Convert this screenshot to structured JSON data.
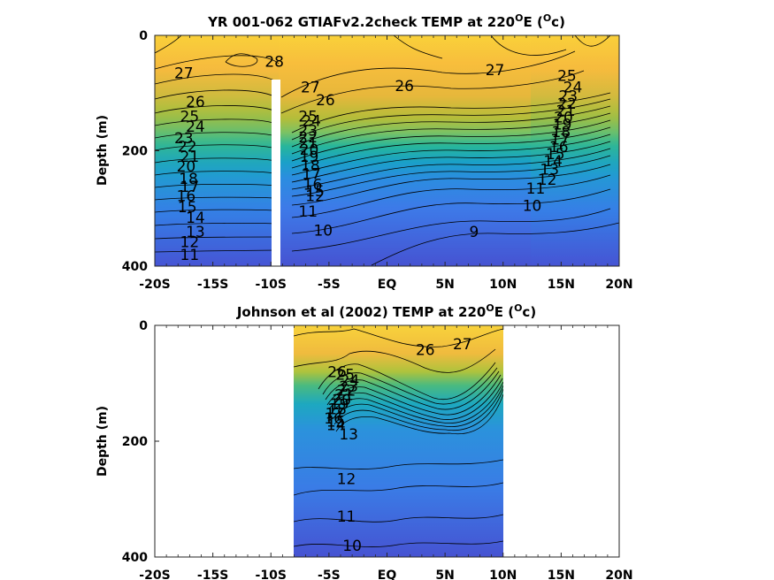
{
  "chart_data": [
    {
      "type": "contour",
      "title": "YR 001-062 GTIAFv2.2check TEMP at 220",
      "title_sup": "O",
      "title_tail": "E (",
      "title_unit_sup": "O",
      "title_unit": "c)",
      "ylabel": "Depth (m)",
      "xlim": [
        -20,
        20
      ],
      "ylim": [
        0,
        400
      ],
      "y_reversed": true,
      "x_ticks": [
        -20,
        -15,
        -10,
        -5,
        0,
        5,
        10,
        15,
        20
      ],
      "x_tick_labels": [
        "-20S",
        "-15S",
        "-10S",
        "-5S",
        "EQ",
        "5N",
        "10N",
        "15N",
        "20N"
      ],
      "y_ticks": [
        0,
        200,
        400
      ],
      "y_tick_labels": [
        "0",
        "200",
        "400"
      ],
      "data_extent_x": [
        -20,
        20
      ],
      "missing_band_x": [
        -10.1,
        -9.7
      ],
      "missing_band_top_depth": 78,
      "colormap": "parula",
      "color_range": [
        8,
        29
      ],
      "contour_interval": 1,
      "contour_labels": [
        {
          "text": "28",
          "x": -9.7,
          "depth": 45
        },
        {
          "text": "27",
          "x": -17.5,
          "depth": 65
        },
        {
          "text": "26",
          "x": -16.5,
          "depth": 115
        },
        {
          "text": "25",
          "x": -17,
          "depth": 140
        },
        {
          "text": "24",
          "x": -16.5,
          "depth": 158
        },
        {
          "text": "23",
          "x": -17.5,
          "depth": 178
        },
        {
          "text": "22",
          "x": -17.2,
          "depth": 192
        },
        {
          "text": "21",
          "x": -17,
          "depth": 210
        },
        {
          "text": "20",
          "x": -17.3,
          "depth": 227
        },
        {
          "text": "18",
          "x": -17.1,
          "depth": 248
        },
        {
          "text": "17",
          "x": -17,
          "depth": 262
        },
        {
          "text": "16",
          "x": -17.3,
          "depth": 278
        },
        {
          "text": "15",
          "x": -17.2,
          "depth": 297
        },
        {
          "text": "14",
          "x": -16.5,
          "depth": 316
        },
        {
          "text": "13",
          "x": -16.5,
          "depth": 340
        },
        {
          "text": "12",
          "x": -17,
          "depth": 358
        },
        {
          "text": "11",
          "x": -17,
          "depth": 380
        },
        {
          "text": "27",
          "x": -6.6,
          "depth": 90
        },
        {
          "text": "26",
          "x": -5.3,
          "depth": 112
        },
        {
          "text": "25",
          "x": -6.8,
          "depth": 140
        },
        {
          "text": "24",
          "x": -6.5,
          "depth": 148
        },
        {
          "text": "23",
          "x": -6.8,
          "depth": 165
        },
        {
          "text": "22",
          "x": -6.8,
          "depth": 176
        },
        {
          "text": "21",
          "x": -6.8,
          "depth": 186
        },
        {
          "text": "20",
          "x": -6.7,
          "depth": 198
        },
        {
          "text": "19",
          "x": -6.7,
          "depth": 210
        },
        {
          "text": "18",
          "x": -6.6,
          "depth": 225
        },
        {
          "text": "17",
          "x": -6.5,
          "depth": 240
        },
        {
          "text": "16",
          "x": -6.4,
          "depth": 258
        },
        {
          "text": "15",
          "x": -6.2,
          "depth": 270
        },
        {
          "text": "12",
          "x": -6.2,
          "depth": 278
        },
        {
          "text": "11",
          "x": -6.8,
          "depth": 305
        },
        {
          "text": "10",
          "x": -5.5,
          "depth": 338
        },
        {
          "text": "26",
          "x": 1.5,
          "depth": 87
        },
        {
          "text": "27",
          "x": 9.3,
          "depth": 60
        },
        {
          "text": "9",
          "x": 7.5,
          "depth": 340
        },
        {
          "text": "25",
          "x": 15.5,
          "depth": 70
        },
        {
          "text": "24",
          "x": 16,
          "depth": 90
        },
        {
          "text": "23",
          "x": 15.6,
          "depth": 105
        },
        {
          "text": "22",
          "x": 15.5,
          "depth": 118
        },
        {
          "text": "21",
          "x": 15.4,
          "depth": 130
        },
        {
          "text": "20",
          "x": 15.2,
          "depth": 142
        },
        {
          "text": "19",
          "x": 15.1,
          "depth": 154
        },
        {
          "text": "18",
          "x": 15,
          "depth": 167
        },
        {
          "text": "17",
          "x": 14.9,
          "depth": 180
        },
        {
          "text": "16",
          "x": 14.8,
          "depth": 193
        },
        {
          "text": "15",
          "x": 14.5,
          "depth": 205
        },
        {
          "text": "14",
          "x": 14.3,
          "depth": 218
        },
        {
          "text": "13",
          "x": 14,
          "depth": 232
        },
        {
          "text": "12",
          "x": 13.8,
          "depth": 250
        },
        {
          "text": "11",
          "x": 12.8,
          "depth": 265
        },
        {
          "text": "10",
          "x": 12.5,
          "depth": 295
        }
      ]
    },
    {
      "type": "contour",
      "title": "Johnson et al (2002) TEMP at 220",
      "title_sup": "O",
      "title_tail": "E (",
      "title_unit_sup": "O",
      "title_unit": "c)",
      "ylabel": "Depth (m)",
      "xlim": [
        -20,
        20
      ],
      "ylim": [
        0,
        400
      ],
      "y_reversed": true,
      "x_ticks": [
        -20,
        -15,
        -10,
        -5,
        0,
        5,
        10,
        15,
        20
      ],
      "x_tick_labels": [
        "-20S",
        "-15S",
        "-10S",
        "-5S",
        "EQ",
        "5N",
        "10N",
        "15N",
        "20N"
      ],
      "y_ticks": [
        0,
        200,
        400
      ],
      "y_tick_labels": [
        "0",
        "200",
        "400"
      ],
      "data_extent_x": [
        -8,
        10
      ],
      "colormap": "parula",
      "color_range": [
        8,
        29
      ],
      "contour_interval": 1,
      "contour_labels": [
        {
          "text": "26",
          "x": -4.3,
          "depth": 80
        },
        {
          "text": "25",
          "x": -3.6,
          "depth": 85
        },
        {
          "text": "24",
          "x": -3.2,
          "depth": 95
        },
        {
          "text": "23",
          "x": -3.3,
          "depth": 105
        },
        {
          "text": "22",
          "x": -3.5,
          "depth": 112
        },
        {
          "text": "21",
          "x": -3.7,
          "depth": 120
        },
        {
          "text": "20",
          "x": -3.9,
          "depth": 128
        },
        {
          "text": "19",
          "x": -4.1,
          "depth": 136
        },
        {
          "text": "18",
          "x": -4.3,
          "depth": 144
        },
        {
          "text": "17",
          "x": -4.5,
          "depth": 152
        },
        {
          "text": "16",
          "x": -4.6,
          "depth": 160
        },
        {
          "text": "15",
          "x": -4.4,
          "depth": 166
        },
        {
          "text": "14",
          "x": -4.4,
          "depth": 172
        },
        {
          "text": "13",
          "x": -3.3,
          "depth": 188
        },
        {
          "text": "12",
          "x": -3.5,
          "depth": 265
        },
        {
          "text": "11",
          "x": -3.5,
          "depth": 330
        },
        {
          "text": "10",
          "x": -3,
          "depth": 380
        },
        {
          "text": "26",
          "x": 3.3,
          "depth": 42
        },
        {
          "text": "27",
          "x": 6.5,
          "depth": 32
        }
      ]
    }
  ]
}
